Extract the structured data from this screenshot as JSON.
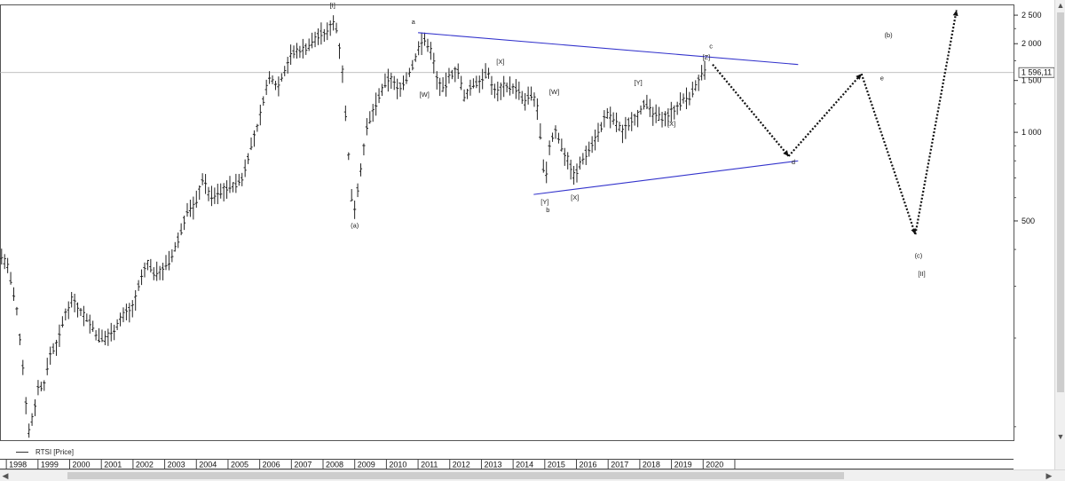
{
  "chart_data": {
    "type": "line",
    "style": "ohlc-bars",
    "title": "",
    "xlabel": "",
    "ylabel": "",
    "y_scale": "log",
    "ylim": [
      90,
      2700
    ],
    "xlim": [
      1997.8,
      2029.8
    ],
    "y_ticks": [
      500,
      1000,
      1500,
      2000,
      2500
    ],
    "y_tick_labels": [
      "500",
      "1 000",
      "1 500",
      "2 000",
      "2 500"
    ],
    "x_ticks": [
      1998,
      1999,
      2000,
      2001,
      2002,
      2003,
      2004,
      2005,
      2006,
      2007,
      2008,
      2009,
      2010,
      2011,
      2012,
      2013,
      2014,
      2015,
      2016,
      2017,
      2018,
      2019,
      2020
    ],
    "x_tick_labels": [
      "1998",
      "1999",
      "2000",
      "2001",
      "2002",
      "2003",
      "2004",
      "2005",
      "2006",
      "2007",
      "2008",
      "2009",
      "2010",
      "2011",
      "2012",
      "2013",
      "2014",
      "2015",
      "2016",
      "2017",
      "2018",
      "2019",
      "2020"
    ],
    "grid": false,
    "series": [
      {
        "name": "RTSI [Price]",
        "color": "#222222",
        "points": [
          [
            1997.85,
            380
          ],
          [
            1998.05,
            350
          ],
          [
            1998.35,
            240
          ],
          [
            1998.55,
            150
          ],
          [
            1998.7,
            95
          ],
          [
            1998.85,
            110
          ],
          [
            1999.0,
            135
          ],
          [
            1999.2,
            140
          ],
          [
            1999.4,
            180
          ],
          [
            1999.6,
            190
          ],
          [
            1999.85,
            240
          ],
          [
            2000.1,
            275
          ],
          [
            2000.3,
            250
          ],
          [
            2000.6,
            230
          ],
          [
            2000.9,
            200
          ],
          [
            2001.15,
            200
          ],
          [
            2001.4,
            215
          ],
          [
            2001.7,
            240
          ],
          [
            2002.0,
            255
          ],
          [
            2002.2,
            305
          ],
          [
            2002.45,
            360
          ],
          [
            2002.7,
            330
          ],
          [
            2002.95,
            345
          ],
          [
            2003.2,
            370
          ],
          [
            2003.45,
            440
          ],
          [
            2003.7,
            540
          ],
          [
            2003.95,
            560
          ],
          [
            2004.2,
            700
          ],
          [
            2004.45,
            600
          ],
          [
            2004.7,
            620
          ],
          [
            2004.95,
            650
          ],
          [
            2005.2,
            660
          ],
          [
            2005.45,
            700
          ],
          [
            2005.7,
            880
          ],
          [
            2005.95,
            1050
          ],
          [
            2006.15,
            1350
          ],
          [
            2006.35,
            1560
          ],
          [
            2006.55,
            1420
          ],
          [
            2006.8,
            1640
          ],
          [
            2007.0,
            1850
          ],
          [
            2007.25,
            1900
          ],
          [
            2007.5,
            1950
          ],
          [
            2007.7,
            2050
          ],
          [
            2007.9,
            2170
          ],
          [
            2008.1,
            2130
          ],
          [
            2008.3,
            2420
          ],
          [
            2008.45,
            2200
          ],
          [
            2008.6,
            1700
          ],
          [
            2008.75,
            1000
          ],
          [
            2008.9,
            600
          ],
          [
            2009.0,
            560
          ],
          [
            2009.15,
            700
          ],
          [
            2009.35,
            1000
          ],
          [
            2009.6,
            1200
          ],
          [
            2009.85,
            1380
          ],
          [
            2010.1,
            1550
          ],
          [
            2010.35,
            1400
          ],
          [
            2010.6,
            1500
          ],
          [
            2010.85,
            1700
          ],
          [
            2011.05,
            2000
          ],
          [
            2011.25,
            2050
          ],
          [
            2011.45,
            1850
          ],
          [
            2011.6,
            1500
          ],
          [
            2011.8,
            1400
          ],
          [
            2012.0,
            1550
          ],
          [
            2012.25,
            1650
          ],
          [
            2012.45,
            1300
          ],
          [
            2012.7,
            1450
          ],
          [
            2012.95,
            1500
          ],
          [
            2013.2,
            1600
          ],
          [
            2013.45,
            1350
          ],
          [
            2013.7,
            1450
          ],
          [
            2013.95,
            1420
          ],
          [
            2014.15,
            1400
          ],
          [
            2014.35,
            1250
          ],
          [
            2014.55,
            1350
          ],
          [
            2014.75,
            1250
          ],
          [
            2014.9,
            900
          ],
          [
            2015.0,
            650
          ],
          [
            2015.15,
            900
          ],
          [
            2015.35,
            1020
          ],
          [
            2015.55,
            880
          ],
          [
            2015.75,
            800
          ],
          [
            2015.95,
            700
          ],
          [
            2016.15,
            800
          ],
          [
            2016.45,
            900
          ],
          [
            2016.7,
            1000
          ],
          [
            2016.95,
            1150
          ],
          [
            2017.2,
            1100
          ],
          [
            2017.45,
            1000
          ],
          [
            2017.7,
            1100
          ],
          [
            2017.95,
            1150
          ],
          [
            2018.15,
            1270
          ],
          [
            2018.4,
            1150
          ],
          [
            2018.65,
            1120
          ],
          [
            2018.9,
            1150
          ],
          [
            2019.1,
            1200
          ],
          [
            2019.35,
            1280
          ],
          [
            2019.6,
            1330
          ],
          [
            2019.85,
            1500
          ],
          [
            2020.05,
            1600
          ]
        ]
      }
    ],
    "trendlines": [
      {
        "name": "upper",
        "color": "#3333cc",
        "points": [
          [
            2011.0,
            2180
          ],
          [
            2023.0,
            1700
          ]
        ]
      },
      {
        "name": "lower",
        "color": "#3333cc",
        "points": [
          [
            2014.65,
            615
          ],
          [
            2023.0,
            800
          ]
        ]
      }
    ],
    "projection": {
      "color": "#111111",
      "points": [
        [
          2020.3,
          1700
        ],
        [
          2022.7,
          830
        ],
        [
          2025.0,
          1580
        ],
        [
          2026.7,
          450
        ],
        [
          2028.0,
          2600
        ]
      ]
    },
    "price_line": {
      "value": 1596.11,
      "label": "1 596,11"
    },
    "annotations": [
      {
        "text": "[I]",
        "x": 2008.3,
        "y": 2650
      },
      {
        "text": "a",
        "x": 2010.85,
        "y": 2330
      },
      {
        "text": "(a)",
        "x": 2009.0,
        "y": 475
      },
      {
        "text": "[W]",
        "x": 2011.2,
        "y": 1320
      },
      {
        "text": "[X]",
        "x": 2013.6,
        "y": 1710
      },
      {
        "text": "[W]",
        "x": 2015.3,
        "y": 1350
      },
      {
        "text": "[Y]",
        "x": 2015.0,
        "y": 570
      },
      {
        "text": "b",
        "x": 2015.1,
        "y": 535
      },
      {
        "text": "[X]",
        "x": 2015.95,
        "y": 590
      },
      {
        "text": "[Y]",
        "x": 2017.95,
        "y": 1450
      },
      {
        "text": "[X]",
        "x": 2019.0,
        "y": 1050
      },
      {
        "text": "[Z]",
        "x": 2020.1,
        "y": 1770
      },
      {
        "text": "c",
        "x": 2020.25,
        "y": 1930
      },
      {
        "text": "d",
        "x": 2022.85,
        "y": 780
      },
      {
        "text": "e",
        "x": 2025.65,
        "y": 1500
      },
      {
        "text": "(b)",
        "x": 2025.85,
        "y": 2100
      },
      {
        "text": "(c)",
        "x": 2026.8,
        "y": 375
      },
      {
        "text": "[II]",
        "x": 2026.9,
        "y": 325
      }
    ],
    "legend": {
      "position": "bottom-left",
      "entries": [
        "RTSI [Price]"
      ]
    }
  }
}
